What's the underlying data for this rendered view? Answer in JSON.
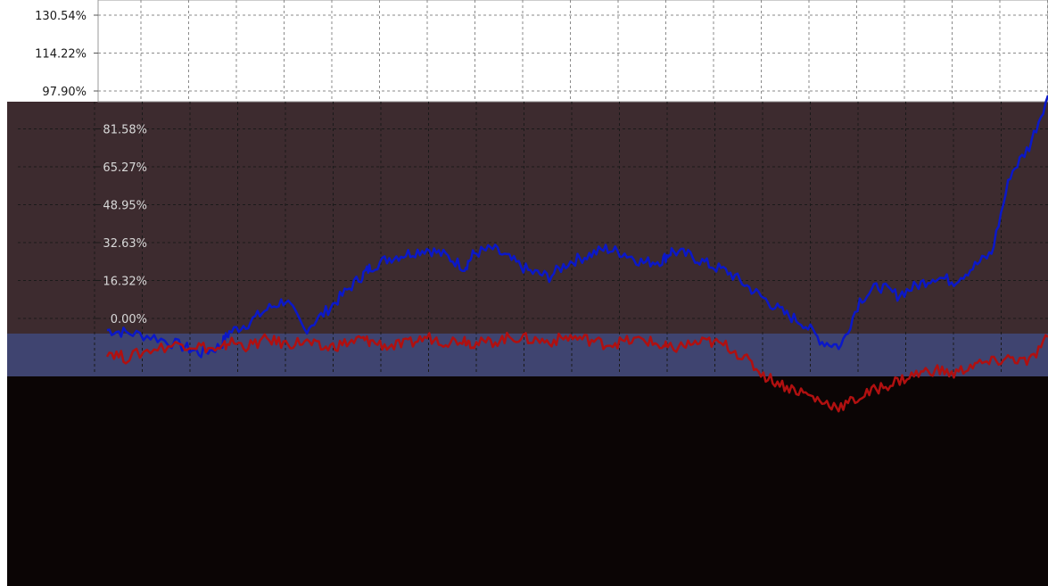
{
  "chart_data": {
    "type": "line",
    "ytick_labels": [
      "130.54%",
      "114.22%",
      "97.90%",
      "81.58%",
      "65.27%",
      "48.95%",
      "32.63%",
      "16.32%",
      "0.00%"
    ],
    "yticks": [
      130.54,
      114.22,
      97.9,
      81.58,
      65.27,
      48.95,
      32.63,
      16.32,
      0.0
    ],
    "ylim": [
      -45,
      132
    ],
    "x_range": [
      0,
      1
    ],
    "grid": true,
    "legend": "none",
    "colors": {
      "series_blue": "#0b18c8",
      "series_red": "#b01010",
      "panel_white": "#ffffff",
      "panel_brown": "#3d2b2f",
      "panel_slate": "#3f4470",
      "panel_black": "#0b0505"
    },
    "series": [
      {
        "color": "#0b18c8",
        "x": [
          0.0,
          0.02,
          0.05,
          0.08,
          0.1,
          0.12,
          0.13,
          0.15,
          0.17,
          0.19,
          0.21,
          0.23,
          0.25,
          0.27,
          0.28,
          0.3,
          0.32,
          0.34,
          0.36,
          0.38,
          0.39,
          0.41,
          0.43,
          0.45,
          0.47,
          0.49,
          0.51,
          0.53,
          0.55,
          0.57,
          0.59,
          0.6,
          0.62,
          0.64,
          0.66,
          0.68,
          0.7,
          0.72,
          0.74,
          0.76,
          0.78,
          0.8,
          0.82,
          0.84,
          0.86,
          0.88,
          0.9,
          0.92,
          0.94,
          0.96,
          0.98,
          1.0
        ],
        "values": [
          -5.0,
          -6.0,
          -8.0,
          -12.0,
          -15.0,
          -12.0,
          -6.0,
          -2.0,
          4.0,
          8.0,
          -5.0,
          2.0,
          10.0,
          18.0,
          22.0,
          26.0,
          28.0,
          30.0,
          27.0,
          22.0,
          28.0,
          30.0,
          25.0,
          20.0,
          18.0,
          24.0,
          27.0,
          30.0,
          28.0,
          24.0,
          25.0,
          29.0,
          27.0,
          23.0,
          20.0,
          14.0,
          8.0,
          2.0,
          -2.0,
          -10.0,
          -12.0,
          8.0,
          14.0,
          10.0,
          14.0,
          18.0,
          16.0,
          22.0,
          28.0,
          62.0,
          74.0,
          96.0
        ]
      },
      {
        "color": "#b01010",
        "x": [
          0.0,
          0.02,
          0.05,
          0.08,
          0.1,
          0.12,
          0.13,
          0.15,
          0.17,
          0.19,
          0.21,
          0.23,
          0.25,
          0.27,
          0.28,
          0.3,
          0.32,
          0.34,
          0.36,
          0.38,
          0.39,
          0.41,
          0.43,
          0.45,
          0.47,
          0.49,
          0.51,
          0.53,
          0.55,
          0.57,
          0.59,
          0.6,
          0.62,
          0.64,
          0.66,
          0.68,
          0.7,
          0.72,
          0.74,
          0.76,
          0.78,
          0.8,
          0.82,
          0.84,
          0.86,
          0.88,
          0.9,
          0.92,
          0.94,
          0.96,
          0.98,
          1.0
        ],
        "values": [
          -14.0,
          -17.0,
          -13.0,
          -11.0,
          -12.0,
          -14.0,
          -10.0,
          -12.0,
          -9.0,
          -11.0,
          -10.0,
          -13.0,
          -11.0,
          -9.0,
          -10.0,
          -12.0,
          -11.0,
          -8.0,
          -10.0,
          -9.0,
          -11.0,
          -10.0,
          -8.0,
          -9.0,
          -10.0,
          -8.0,
          -9.0,
          -11.0,
          -10.0,
          -9.0,
          -12.0,
          -13.0,
          -11.0,
          -10.0,
          -12.0,
          -18.0,
          -25.0,
          -29.0,
          -32.0,
          -36.0,
          -38.0,
          -34.0,
          -30.0,
          -27.0,
          -24.0,
          -22.0,
          -24.0,
          -20.0,
          -19.0,
          -17.0,
          -19.0,
          -8.0
        ]
      }
    ]
  }
}
